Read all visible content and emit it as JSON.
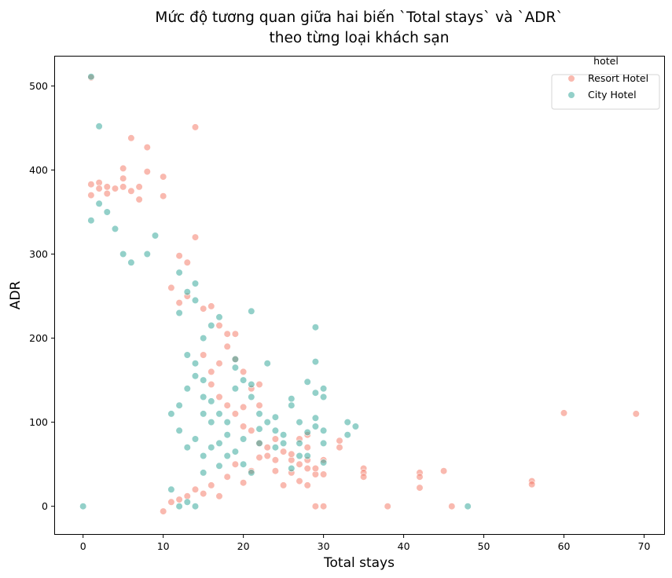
{
  "chart_data": {
    "type": "scatter",
    "title_lines": [
      "Mức độ tương quan giữa hai biến `Total stays` và `ADR`",
      "theo từng loại khách sạn"
    ],
    "xlabel": "Total stays",
    "ylabel": "ADR",
    "xlim": [
      -3.5,
      72.5
    ],
    "ylim": [
      -33,
      535
    ],
    "xticks": [
      0,
      10,
      20,
      30,
      40,
      50,
      60,
      70
    ],
    "yticks": [
      0,
      100,
      200,
      300,
      400,
      500
    ],
    "grid": false,
    "legend": {
      "title": "hotel",
      "position": "top-right"
    },
    "series": [
      {
        "name": "Resort Hotel",
        "color": "#f4806e",
        "points": [
          [
            1,
            510
          ],
          [
            1,
            383
          ],
          [
            1,
            370
          ],
          [
            2,
            385
          ],
          [
            2,
            378
          ],
          [
            3,
            380
          ],
          [
            3,
            372
          ],
          [
            4,
            378
          ],
          [
            5,
            402
          ],
          [
            5,
            390
          ],
          [
            5,
            380
          ],
          [
            6,
            438
          ],
          [
            6,
            375
          ],
          [
            7,
            380
          ],
          [
            7,
            365
          ],
          [
            8,
            427
          ],
          [
            8,
            398
          ],
          [
            10,
            392
          ],
          [
            10,
            369
          ],
          [
            14,
            451
          ],
          [
            12,
            298
          ],
          [
            13,
            290
          ],
          [
            14,
            320
          ],
          [
            11,
            260
          ],
          [
            12,
            242
          ],
          [
            13,
            250
          ],
          [
            15,
            235
          ],
          [
            16,
            238
          ],
          [
            17,
            215
          ],
          [
            18,
            205
          ],
          [
            19,
            205
          ],
          [
            18,
            190
          ],
          [
            19,
            175
          ],
          [
            17,
            170
          ],
          [
            15,
            180
          ],
          [
            16,
            160
          ],
          [
            20,
            160
          ],
          [
            21,
            140
          ],
          [
            22,
            145
          ],
          [
            22,
            120
          ],
          [
            20,
            118
          ],
          [
            19,
            110
          ],
          [
            20,
            95
          ],
          [
            21,
            90
          ],
          [
            22,
            75
          ],
          [
            23,
            70
          ],
          [
            24,
            80
          ],
          [
            25,
            65
          ],
          [
            26,
            55
          ],
          [
            26,
            40
          ],
          [
            27,
            50
          ],
          [
            28,
            45
          ],
          [
            28,
            25
          ],
          [
            29,
            38
          ],
          [
            29,
            0
          ],
          [
            30,
            0
          ],
          [
            30,
            38
          ],
          [
            32,
            70
          ],
          [
            32,
            78
          ],
          [
            35,
            45
          ],
          [
            35,
            40
          ],
          [
            35,
            35
          ],
          [
            38,
            0
          ],
          [
            42,
            40
          ],
          [
            42,
            35
          ],
          [
            42,
            22
          ],
          [
            45,
            42
          ],
          [
            46,
            0
          ],
          [
            56,
            30
          ],
          [
            56,
            26
          ],
          [
            60,
            111
          ],
          [
            69,
            110
          ],
          [
            10,
            -6
          ],
          [
            11,
            5
          ],
          [
            12,
            8
          ],
          [
            13,
            12
          ],
          [
            14,
            20
          ],
          [
            15,
            15
          ],
          [
            16,
            25
          ],
          [
            17,
            12
          ],
          [
            18,
            35
          ],
          [
            20,
            28
          ],
          [
            21,
            42
          ],
          [
            19,
            50
          ],
          [
            24,
            42
          ],
          [
            26,
            62
          ],
          [
            27,
            30
          ],
          [
            28,
            85
          ],
          [
            25,
            25
          ],
          [
            23,
            60
          ],
          [
            22,
            58
          ],
          [
            24,
            55
          ],
          [
            28,
            55
          ],
          [
            28,
            70
          ],
          [
            29,
            45
          ],
          [
            30,
            55
          ],
          [
            27,
            80
          ],
          [
            18,
            120
          ],
          [
            17,
            130
          ],
          [
            16,
            145
          ]
        ]
      },
      {
        "name": "City Hotel",
        "color": "#3aaa9c",
        "points": [
          [
            0,
            0
          ],
          [
            1,
            511
          ],
          [
            2,
            452
          ],
          [
            1,
            340
          ],
          [
            2,
            360
          ],
          [
            3,
            350
          ],
          [
            4,
            330
          ],
          [
            5,
            300
          ],
          [
            6,
            290
          ],
          [
            8,
            300
          ],
          [
            9,
            322
          ],
          [
            12,
            278
          ],
          [
            13,
            255
          ],
          [
            14,
            265
          ],
          [
            14,
            245
          ],
          [
            12,
            230
          ],
          [
            15,
            200
          ],
          [
            16,
            215
          ],
          [
            17,
            225
          ],
          [
            19,
            175
          ],
          [
            19,
            165
          ],
          [
            20,
            150
          ],
          [
            21,
            232
          ],
          [
            21,
            145
          ],
          [
            21,
            130
          ],
          [
            22,
            110
          ],
          [
            23,
            170
          ],
          [
            23,
            100
          ],
          [
            24,
            106
          ],
          [
            24,
            90
          ],
          [
            25,
            85
          ],
          [
            25,
            75
          ],
          [
            26,
            128
          ],
          [
            26,
            120
          ],
          [
            27,
            100
          ],
          [
            27,
            75
          ],
          [
            28,
            88
          ],
          [
            28,
            60
          ],
          [
            28,
            148
          ],
          [
            29,
            213
          ],
          [
            29,
            172
          ],
          [
            29,
            135
          ],
          [
            29,
            105
          ],
          [
            29,
            95
          ],
          [
            30,
            140
          ],
          [
            30,
            130
          ],
          [
            30,
            90
          ],
          [
            30,
            75
          ],
          [
            30,
            52
          ],
          [
            27,
            60
          ],
          [
            33,
            100
          ],
          [
            33,
            85
          ],
          [
            34,
            95
          ],
          [
            48,
            0
          ],
          [
            15,
            40
          ],
          [
            16,
            100
          ],
          [
            17,
            110
          ],
          [
            18,
            85
          ],
          [
            19,
            65
          ],
          [
            20,
            50
          ],
          [
            21,
            40
          ],
          [
            22,
            75
          ],
          [
            18,
            60
          ],
          [
            17,
            75
          ],
          [
            16,
            70
          ],
          [
            15,
            130
          ],
          [
            16,
            125
          ],
          [
            15,
            110
          ],
          [
            14,
            155
          ],
          [
            13,
            140
          ],
          [
            12,
            120
          ],
          [
            11,
            110
          ],
          [
            11,
            20
          ],
          [
            13,
            5
          ],
          [
            14,
            0
          ],
          [
            12,
            0
          ],
          [
            20,
            80
          ],
          [
            22,
            92
          ],
          [
            24,
            70
          ],
          [
            26,
            45
          ],
          [
            19,
            140
          ],
          [
            18,
            100
          ],
          [
            17,
            48
          ],
          [
            15,
            60
          ],
          [
            14,
            80
          ],
          [
            13,
            70
          ],
          [
            12,
            90
          ],
          [
            15,
            150
          ],
          [
            14,
            170
          ],
          [
            13,
            180
          ]
        ]
      }
    ]
  }
}
